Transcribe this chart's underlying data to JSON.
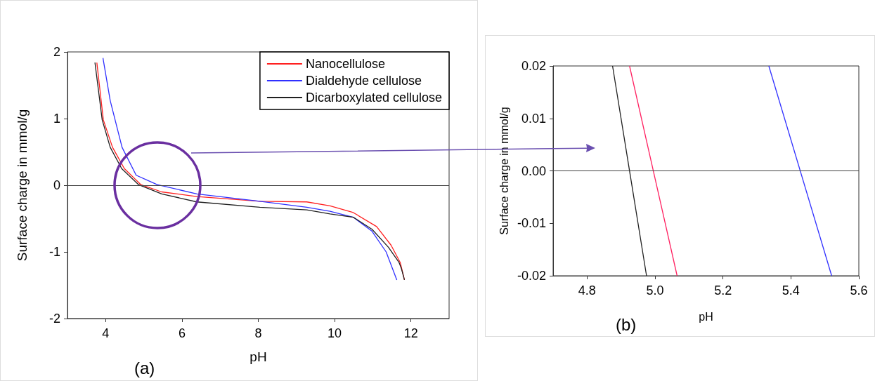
{
  "chart_data": [
    {
      "type": "line",
      "xlabel": "pH",
      "ylabel": "Surface charge in mmol/g",
      "annotations": [
        "(a)"
      ],
      "xlim": [
        3,
        13
      ],
      "xticks": [
        4,
        6,
        8,
        10,
        12
      ],
      "ylim": [
        -2,
        2
      ],
      "yticks": [
        -2,
        -1,
        0,
        1,
        2
      ],
      "ref_lines": [
        {
          "axis": "y",
          "value": 0,
          "color": "#404040"
        }
      ],
      "legend": "top right",
      "grid": false,
      "marker": "none",
      "line_style": "solid",
      "series": [
        {
          "name": "Nanocellulose",
          "color": "#ff2020",
          "x": [
            3.77,
            3.94,
            4.18,
            4.49,
            4.92,
            5.47,
            6.39,
            8.04,
            9.27,
            9.88,
            10.49,
            11.1,
            11.48,
            11.72,
            11.83
          ],
          "values": [
            1.84,
            0.98,
            0.57,
            0.25,
            0.01,
            -0.1,
            -0.17,
            -0.24,
            -0.25,
            -0.31,
            -0.41,
            -0.62,
            -0.9,
            -1.16,
            -1.42
          ]
        },
        {
          "name": "Dialdehyde cellulose",
          "color": "#3030ff",
          "x": [
            3.93,
            4.12,
            4.43,
            4.8,
            5.35,
            6.39,
            8.04,
            9.27,
            9.88,
            10.49,
            10.98,
            11.35,
            11.63
          ],
          "values": [
            1.91,
            1.27,
            0.57,
            0.15,
            0.01,
            -0.13,
            -0.24,
            -0.33,
            -0.39,
            -0.48,
            -0.69,
            -1.0,
            -1.42
          ]
        },
        {
          "name": "Dicarboxylated cellulose",
          "color": "#202020",
          "x": [
            3.72,
            3.91,
            4.12,
            4.42,
            4.86,
            5.47,
            6.39,
            8.04,
            9.27,
            9.88,
            10.49,
            10.98,
            11.41,
            11.69,
            11.75,
            11.83
          ],
          "values": [
            1.84,
            0.98,
            0.57,
            0.25,
            0.01,
            -0.13,
            -0.25,
            -0.33,
            -0.37,
            -0.43,
            -0.48,
            -0.66,
            -0.93,
            -1.16,
            -1.25,
            -1.42
          ]
        }
      ]
    },
    {
      "type": "line",
      "xlabel": "pH",
      "ylabel": "Surface charge in mmol/g",
      "annotations": [
        "(b)"
      ],
      "xlim": [
        4.7,
        5.6
      ],
      "xticks": [
        4.8,
        {
          "value": 5,
          "label": "5.0"
        },
        5.2,
        5.4,
        5.6
      ],
      "ylim": [
        -0.02,
        0.02
      ],
      "yticks": [
        -0.02,
        -0.01,
        {
          "value": 0,
          "label": "0.00"
        },
        0.01,
        0.02
      ],
      "ref_lines": [
        {
          "axis": "y",
          "value": 0,
          "color": "#404040"
        }
      ],
      "grid": false,
      "marker": "none",
      "line_style": "solid",
      "series": [
        {
          "color": "#ff2060",
          "x": [
            4.925,
            5.065
          ],
          "values": [
            0.02,
            -0.02
          ]
        },
        {
          "color": "#3030ff",
          "x": [
            5.335,
            5.52
          ],
          "values": [
            0.02,
            -0.02
          ]
        },
        {
          "color": "#202020",
          "x": [
            4.875,
            4.975
          ],
          "values": [
            0.02,
            -0.02
          ]
        }
      ]
    }
  ]
}
